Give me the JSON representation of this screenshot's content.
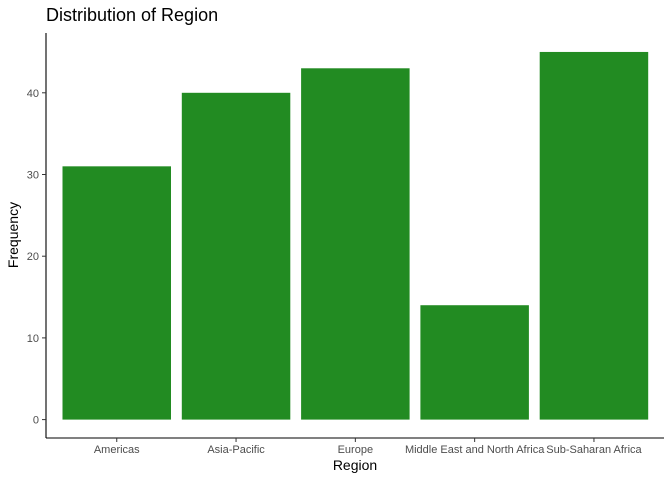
{
  "chart_data": {
    "type": "bar",
    "title": "Distribution of Region",
    "xlabel": "Region",
    "ylabel": "Frequency",
    "categories": [
      "Americas",
      "Asia-Pacific",
      "Europe",
      "Middle East and North Africa",
      "Sub-Saharan Africa"
    ],
    "values": [
      31,
      40,
      43,
      14,
      45
    ],
    "ylim": [
      0,
      47.25
    ],
    "yticks": [
      0,
      10,
      20,
      30,
      40
    ],
    "grid": false,
    "legend": "none",
    "bar_color": "#228B22"
  }
}
